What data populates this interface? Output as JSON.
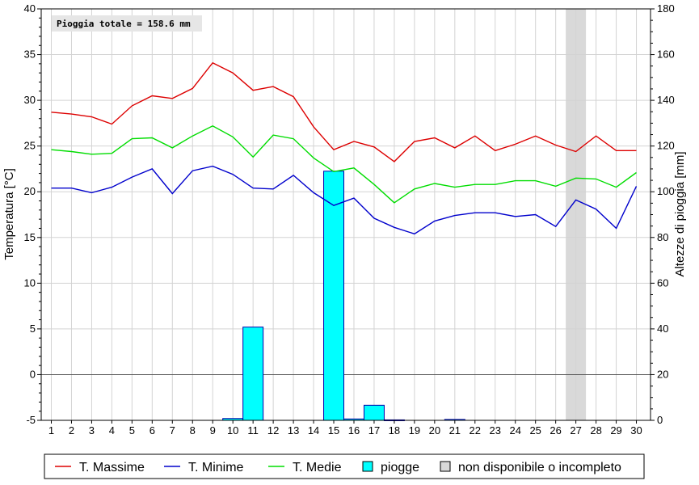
{
  "chart_data": {
    "type": "line",
    "annotation": "Pioggia totale = 158.6 mm",
    "y_left": {
      "label": "Temperatura [°C]",
      "lim": [
        -5,
        40
      ],
      "ticks": [
        -5,
        0,
        5,
        10,
        15,
        20,
        25,
        30,
        35,
        40
      ]
    },
    "y_right": {
      "label": "Altezze di pioggia [mm]",
      "lim": [
        0,
        180
      ],
      "ticks": [
        0,
        20,
        40,
        60,
        80,
        100,
        120,
        140,
        160,
        180
      ]
    },
    "x": [
      1,
      2,
      3,
      4,
      5,
      6,
      7,
      8,
      9,
      10,
      11,
      12,
      13,
      14,
      15,
      16,
      17,
      18,
      19,
      20,
      21,
      22,
      23,
      24,
      25,
      26,
      27,
      28,
      29,
      30
    ],
    "grid": true,
    "legend_position": "bottom",
    "series": [
      {
        "name": "T. Massime",
        "kind": "line",
        "axis": "left",
        "color": "#dd0000",
        "values": [
          28.7,
          28.5,
          28.2,
          27.4,
          29.4,
          30.5,
          30.2,
          31.3,
          34.1,
          33.0,
          31.1,
          31.5,
          30.4,
          27.1,
          24.6,
          25.5,
          24.9,
          23.3,
          25.5,
          25.9,
          24.8,
          26.1,
          24.5,
          25.2,
          26.1,
          25.1,
          24.4,
          26.1,
          24.5,
          24.5
        ]
      },
      {
        "name": "T. Minime",
        "kind": "line",
        "axis": "left",
        "color": "#0000cc",
        "values": [
          20.4,
          20.4,
          19.9,
          20.5,
          21.6,
          22.5,
          19.8,
          22.3,
          22.8,
          21.9,
          20.4,
          20.3,
          21.8,
          19.9,
          18.5,
          19.3,
          17.1,
          16.1,
          15.4,
          16.8,
          17.4,
          17.7,
          17.7,
          17.3,
          17.5,
          16.2,
          19.1,
          18.1,
          16.0,
          20.6
        ]
      },
      {
        "name": "T. Medie",
        "kind": "line",
        "axis": "left",
        "color": "#00dd00",
        "values": [
          24.6,
          24.4,
          24.1,
          24.2,
          25.8,
          25.9,
          24.8,
          26.1,
          27.2,
          26.0,
          23.8,
          26.2,
          25.8,
          23.7,
          22.2,
          22.6,
          20.8,
          18.8,
          20.3,
          20.9,
          20.5,
          20.8,
          20.8,
          21.2,
          21.2,
          20.6,
          21.5,
          21.4,
          20.5,
          22.1
        ]
      },
      {
        "name": "piogge",
        "kind": "bar",
        "axis": "right",
        "color": "#00ffff",
        "values": [
          0,
          0,
          0,
          0,
          0,
          0,
          0,
          0,
          0,
          0.8,
          40.8,
          0,
          0,
          0,
          109.0,
          0.6,
          6.6,
          0.2,
          0,
          0,
          0.4,
          0,
          0,
          0,
          0,
          0,
          0,
          0,
          0,
          0
        ]
      }
    ],
    "unavailable_days": [
      27
    ],
    "legend": [
      {
        "label": "T. Massime",
        "type": "line",
        "color": "#dd0000"
      },
      {
        "label": "T. Minime",
        "type": "line",
        "color": "#0000cc"
      },
      {
        "label": "T. Medie",
        "type": "line",
        "color": "#00dd00"
      },
      {
        "label": "piogge",
        "type": "box",
        "color": "#00ffff"
      },
      {
        "label": "non disponibile o incompleto",
        "type": "box",
        "color": "#d9d9d9"
      }
    ]
  }
}
